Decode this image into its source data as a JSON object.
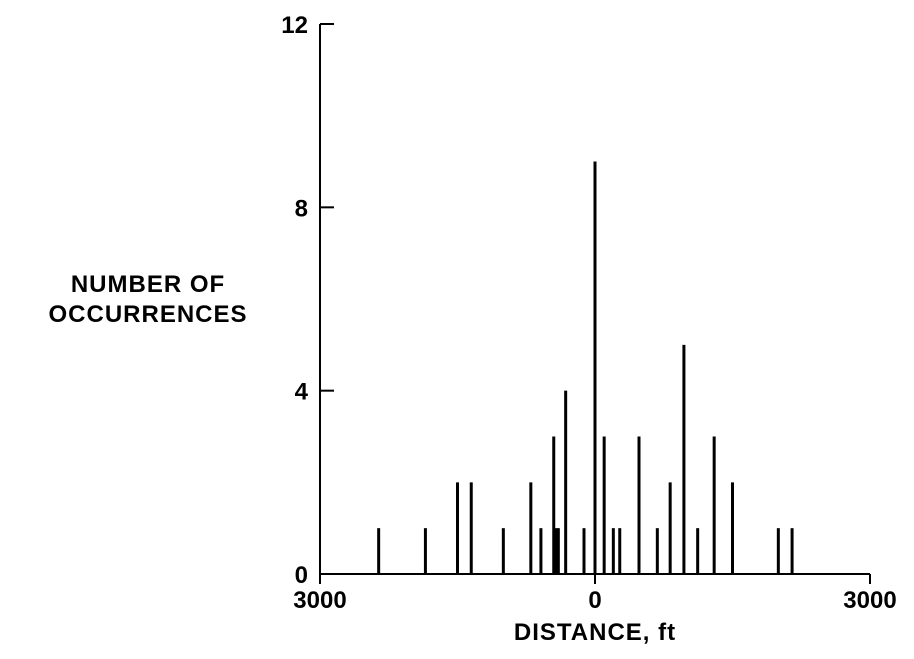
{
  "chart_data": {
    "type": "bar",
    "title": "",
    "xlabel": "DISTANCE, ft",
    "ylabel_lines": [
      "NUMBER OF",
      "OCCURRENCES"
    ],
    "xlim": [
      -3000,
      3000
    ],
    "ylim": [
      0,
      12
    ],
    "x_tick_labels": [
      {
        "value": -3000,
        "label": "3000"
      },
      {
        "value": 0,
        "label": "0"
      },
      {
        "value": 3000,
        "label": "3000"
      }
    ],
    "y_tick_labels": [
      {
        "value": 0,
        "label": "0"
      },
      {
        "value": 4,
        "label": "4"
      },
      {
        "value": 8,
        "label": "8"
      },
      {
        "value": 12,
        "label": "12"
      }
    ],
    "grid": false,
    "series": [
      {
        "x": [
          -2360,
          -1850,
          -1500,
          -1350,
          -1000,
          -700,
          -590,
          -450,
          -400,
          -320,
          -120,
          -420,
          0,
          100,
          200,
          270,
          480,
          680,
          820,
          970,
          1120,
          1300,
          1500,
          2000,
          2150
        ],
        "values": [
          1,
          1,
          2,
          2,
          1,
          2,
          1,
          3,
          1,
          4,
          1,
          1,
          9,
          3,
          1,
          1,
          3,
          1,
          2,
          5,
          1,
          3,
          2,
          1,
          1
        ]
      }
    ]
  }
}
